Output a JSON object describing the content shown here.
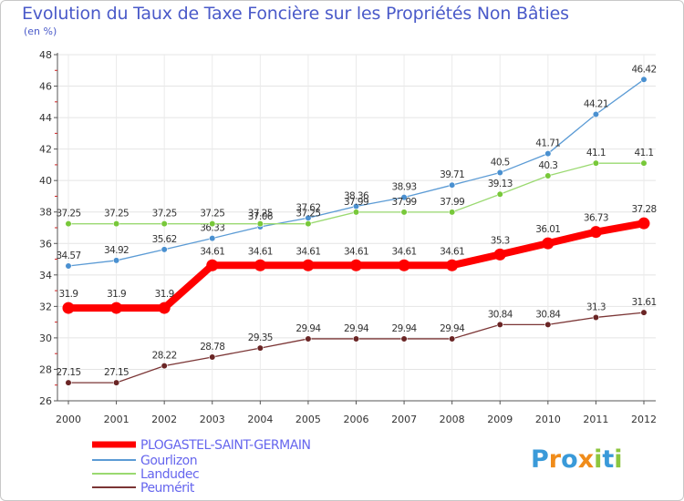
{
  "header": {
    "title": "Evolution du Taux de Taxe Foncière sur les Propriétés Non Bâties",
    "subtitle": "(en %)"
  },
  "logo": {
    "letters": [
      "P",
      "r",
      "o",
      "x",
      "i",
      "t",
      "i"
    ],
    "colors": [
      "#3a9ad9",
      "#f08c1a",
      "#3a9ad9",
      "#f08c1a",
      "#8cc63f",
      "#3a9ad9",
      "#8cc63f"
    ]
  },
  "chart_data": {
    "type": "line",
    "x": [
      "2000",
      "2001",
      "2002",
      "2003",
      "2004",
      "2005",
      "2006",
      "2007",
      "2008",
      "2009",
      "2010",
      "2011",
      "2012"
    ],
    "ylim": [
      26,
      48
    ],
    "yticks": [
      26,
      28,
      30,
      32,
      34,
      36,
      38,
      40,
      42,
      44,
      46,
      48
    ],
    "grid": true,
    "legend_position": "bottom-left",
    "series": [
      {
        "name": "PLOGASTEL-SAINT-GERMAIN",
        "color": "#ff0000",
        "legend_color": "#6666ee",
        "thick": true,
        "values": [
          31.9,
          31.9,
          31.9,
          34.61,
          34.61,
          34.61,
          34.61,
          34.61,
          34.61,
          35.3,
          36.01,
          36.73,
          37.28
        ],
        "labels": [
          "31.9",
          "31.9",
          "31.9",
          "34.61",
          "34.61",
          "34.61",
          "34.61",
          "34.61",
          "34.61",
          "35.3",
          "36.01",
          "36.73",
          "37.28"
        ]
      },
      {
        "name": "Gourlizon",
        "color": "#5b9bd5",
        "marker": "#4a90d0",
        "legend_color": "#6666ee",
        "values": [
          34.57,
          34.92,
          35.62,
          36.33,
          37.06,
          37.62,
          38.36,
          38.93,
          39.71,
          40.5,
          41.71,
          44.21,
          46.42
        ],
        "labels": [
          "34.57",
          "34.92",
          "35.62",
          "36.33",
          "37.06",
          "37.62",
          "38.36",
          "38.93",
          "39.71",
          "40.5",
          "41.71",
          "44.21",
          "46.42"
        ]
      },
      {
        "name": "Landudec",
        "color": "#9ad970",
        "marker": "#78c83a",
        "legend_color": "#6666ee",
        "values": [
          37.25,
          37.25,
          37.25,
          37.25,
          37.25,
          37.25,
          37.99,
          37.99,
          37.99,
          39.13,
          40.3,
          41.1,
          41.1
        ],
        "labels": [
          "37.25",
          "37.25",
          "37.25",
          "37.25",
          "37.25",
          "37.25",
          "37.99",
          "37.99",
          "37.99",
          "39.13",
          "40.3",
          "41.1",
          "41.1"
        ]
      },
      {
        "name": "Peumérit",
        "color": "#7b3535",
        "marker": "#6a2525",
        "legend_color": "#6666ee",
        "values": [
          27.15,
          27.15,
          28.22,
          28.78,
          29.35,
          29.94,
          29.94,
          29.94,
          29.94,
          30.84,
          30.84,
          31.3,
          31.61
        ],
        "labels": [
          "27.15",
          "27.15",
          "28.22",
          "28.78",
          "29.35",
          "29.94",
          "29.94",
          "29.94",
          "29.94",
          "30.84",
          "30.84",
          "31.3",
          "31.61"
        ]
      }
    ]
  }
}
